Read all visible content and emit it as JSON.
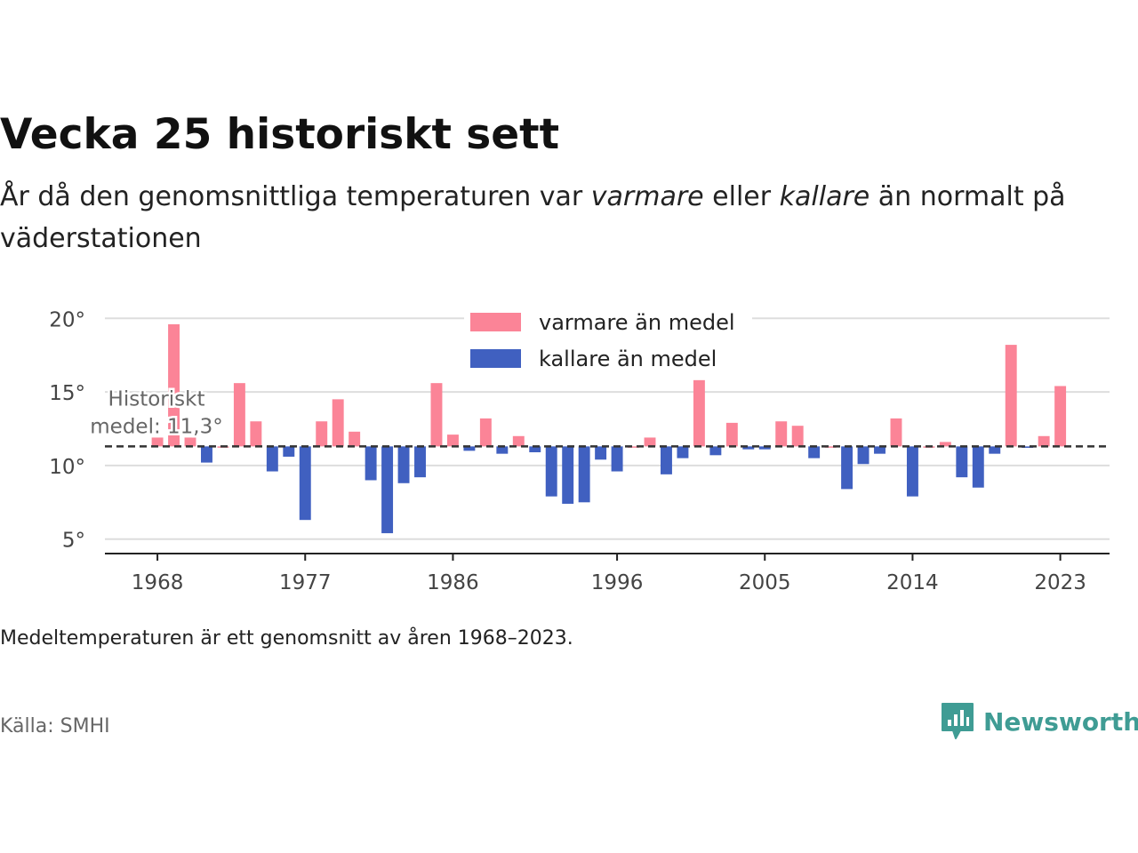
{
  "header": {
    "title": "Vecka 25 historiskt sett",
    "subtitle_part1": "År då den genomsnittliga temperaturen var ",
    "subtitle_em1": "varmare",
    "subtitle_part2": " eller ",
    "subtitle_em2": "kallare",
    "subtitle_part3": " än normalt på väderstationen"
  },
  "footer": {
    "note": "Medeltemperaturen är ett genomsnitt av åren 1968–2023.",
    "source": "Källa: SMHI",
    "brand": "Newsworthy"
  },
  "colors": {
    "warmer": "#fb8497",
    "colder": "#4060c0",
    "mean_line": "#333333",
    "grid": "#dddddd",
    "axis": "#222222",
    "brand": "#3f9c94"
  },
  "chart_data": {
    "type": "bar",
    "baseline": 11.3,
    "baseline_label_line1": "Historiskt",
    "baseline_label_line2": "medel: 11,3°",
    "ylim": [
      4.5,
      20.5
    ],
    "yticks": [
      5,
      10,
      15,
      20
    ],
    "ytick_labels": [
      "5°",
      "10°",
      "15°",
      "20°"
    ],
    "xlim": [
      1964.8,
      2026
    ],
    "xticks": [
      1968,
      1977,
      1986,
      1996,
      2005,
      2014,
      2023
    ],
    "xtick_labels": [
      "1968",
      "1977",
      "1986",
      "1996",
      "2005",
      "2014",
      "2023"
    ],
    "legend_position": "top-center",
    "legend": [
      "varmare än medel",
      "kallare än medel"
    ],
    "years": [
      1968,
      1969,
      1970,
      1971,
      1972,
      1973,
      1974,
      1975,
      1976,
      1977,
      1978,
      1979,
      1980,
      1981,
      1982,
      1983,
      1984,
      1985,
      1986,
      1987,
      1988,
      1989,
      1990,
      1991,
      1992,
      1993,
      1994,
      1995,
      1996,
      1997,
      1998,
      1999,
      2000,
      2001,
      2002,
      2003,
      2004,
      2005,
      2006,
      2007,
      2008,
      2009,
      2010,
      2011,
      2012,
      2013,
      2014,
      2015,
      2016,
      2017,
      2018,
      2019,
      2020,
      2021,
      2022,
      2023
    ],
    "values": [
      11.9,
      19.6,
      11.9,
      10.2,
      11.3,
      15.6,
      13.0,
      9.6,
      10.6,
      6.3,
      13.0,
      14.5,
      12.3,
      9.0,
      5.4,
      8.8,
      9.2,
      15.6,
      12.1,
      11.0,
      13.2,
      10.8,
      12.0,
      10.9,
      7.9,
      7.4,
      7.5,
      10.4,
      9.6,
      11.3,
      11.9,
      9.4,
      10.5,
      15.8,
      10.7,
      12.9,
      11.1,
      11.1,
      13.0,
      12.7,
      10.5,
      11.3,
      8.4,
      10.1,
      10.8,
      13.2,
      7.9,
      11.3,
      11.6,
      9.2,
      8.5,
      10.8,
      18.2,
      11.2,
      12.0,
      15.4
    ]
  }
}
